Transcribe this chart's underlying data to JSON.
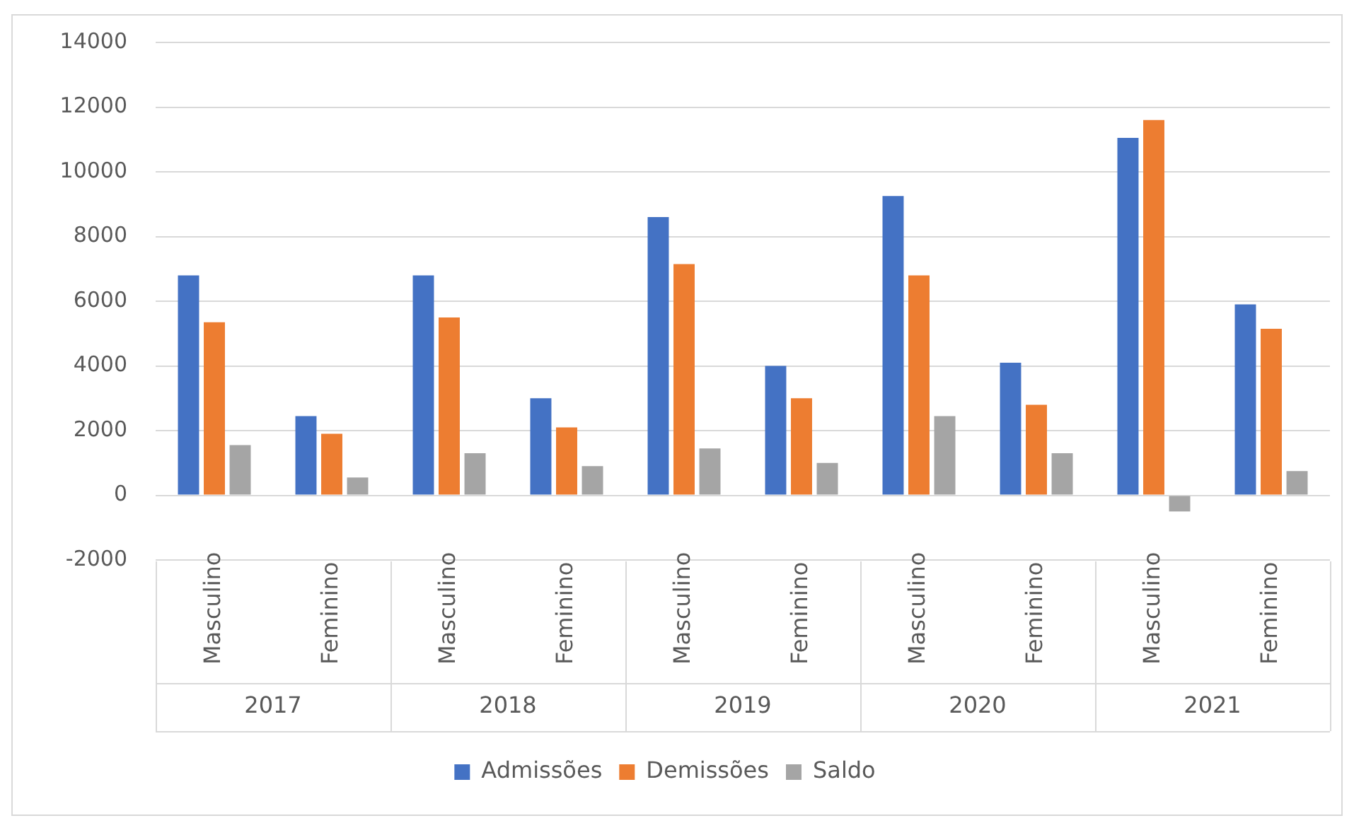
{
  "chart_data": {
    "type": "bar",
    "categories": [
      "Masculino",
      "Feminino",
      "Masculino",
      "Feminino",
      "Masculino",
      "Feminino",
      "Masculino",
      "Feminino",
      "Masculino",
      "Feminino"
    ],
    "series": [
      {
        "name": "Admissões",
        "color": "#4472c4",
        "values": [
          6800,
          2450,
          6800,
          3000,
          8600,
          4000,
          9250,
          4100,
          11050,
          5900
        ]
      },
      {
        "name": "Demissões",
        "color": "#ed7d31",
        "values": [
          5350,
          1900,
          5500,
          2100,
          7150,
          3000,
          6800,
          2800,
          11600,
          5150
        ]
      },
      {
        "name": "Saldo",
        "color": "#a5a5a5",
        "values": [
          1550,
          550,
          1300,
          900,
          1450,
          1000,
          2450,
          1300,
          -500,
          750
        ]
      }
    ],
    "annotations": [
      "2017",
      "2018",
      "2019",
      "2020",
      "2021"
    ],
    "ylim": [
      -2000,
      14000
    ],
    "yticks": [
      -2000,
      0,
      2000,
      4000,
      6000,
      8000,
      10000,
      12000,
      14000
    ],
    "grid": "y",
    "legend": "bottom"
  }
}
